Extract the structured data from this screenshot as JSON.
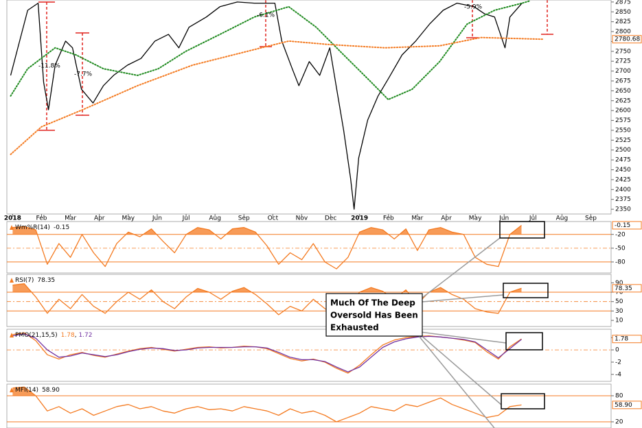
{
  "chart_data": [
    {
      "type": "line",
      "xlim": [
        -0.2,
        20.7
      ],
      "xticks": [
        {
          "value": 0,
          "label": "2018"
        },
        {
          "value": 1,
          "label": "Feb"
        },
        {
          "value": 2,
          "label": "Mar"
        },
        {
          "value": 3,
          "label": "Apr"
        },
        {
          "value": 4,
          "label": "May"
        },
        {
          "value": 5,
          "label": "Jun"
        },
        {
          "value": 6,
          "label": "Jul"
        },
        {
          "value": 7,
          "label": "Aug"
        },
        {
          "value": 8,
          "label": "Sep"
        },
        {
          "value": 9,
          "label": "Oct"
        },
        {
          "value": 10,
          "label": "Nov"
        },
        {
          "value": 11,
          "label": "Dec"
        },
        {
          "value": 12,
          "label": "2019"
        },
        {
          "value": 13,
          "label": "Feb"
        },
        {
          "value": 14,
          "label": "Mar"
        },
        {
          "value": 15,
          "label": "Apr"
        },
        {
          "value": 16,
          "label": "May"
        },
        {
          "value": 17,
          "label": "Jun"
        },
        {
          "value": 18,
          "label": "Jul"
        },
        {
          "value": 19,
          "label": "Aug"
        },
        {
          "value": 20,
          "label": "Sep"
        }
      ],
      "ylim": [
        2338,
        2880
      ],
      "yticks": [
        2350,
        2375,
        2400,
        2425,
        2450,
        2475,
        2500,
        2525,
        2550,
        2575,
        2600,
        2625,
        2650,
        2675,
        2700,
        2725,
        2750,
        2775,
        2800,
        2825,
        2850,
        2875
      ],
      "series": [
        {
          "color": "#000000",
          "line_style": "solid",
          "x": [
            -0.07,
            0.52,
            0.88,
            1.07,
            1.24,
            1.47,
            1.83,
            2.07,
            2.38,
            2.78,
            3.14,
            3.49,
            3.97,
            4.44,
            4.92,
            5.39,
            5.75,
            6.1,
            6.7,
            7.17,
            7.77,
            8.36,
            9.07,
            9.31,
            9.67,
            9.9,
            10.26,
            10.62,
            10.97,
            11.21,
            11.45,
            11.69,
            11.81,
            11.97,
            12.28,
            12.64,
            12.99,
            13.47,
            13.94,
            14.42,
            14.89,
            15.37,
            15.96,
            16.32,
            16.67,
            17.03,
            17.2,
            17.62
          ],
          "values": [
            2689,
            2854,
            2872,
            2672,
            2602,
            2715,
            2776,
            2759,
            2654,
            2619,
            2663,
            2689,
            2715,
            2732,
            2776,
            2793,
            2759,
            2811,
            2837,
            2863,
            2875,
            2872,
            2872,
            2776,
            2706,
            2663,
            2724,
            2689,
            2759,
            2654,
            2550,
            2428,
            2350,
            2480,
            2576,
            2637,
            2680,
            2741,
            2776,
            2819,
            2854,
            2872,
            2863,
            2845,
            2837,
            2759,
            2837,
            2872
          ]
        },
        {
          "color": "#1f8a1f",
          "line_style": "dotted",
          "x": [
            -0.07,
            0.52,
            1.47,
            2.19,
            3.14,
            4.32,
            5.04,
            5.99,
            7.17,
            8.36,
            9.55,
            10.5,
            11.45,
            12.4,
            12.99,
            13.82,
            14.77,
            15.72,
            16.67,
            17.62,
            17.86
          ],
          "values": [
            2637,
            2706,
            2759,
            2741,
            2706,
            2689,
            2706,
            2750,
            2793,
            2837,
            2863,
            2811,
            2741,
            2672,
            2628,
            2654,
            2724,
            2819,
            2854,
            2872,
            2877
          ]
        },
        {
          "color": "#f47a20",
          "line_style": "dotted",
          "x": [
            -0.07,
            1.0,
            2.42,
            4.32,
            6.22,
            8.6,
            9.55,
            10.97,
            12.87,
            14.77,
            16.2,
            18.34
          ],
          "values": [
            2489,
            2559,
            2602,
            2663,
            2715,
            2759,
            2776,
            2767,
            2759,
            2764,
            2785,
            2780.68
          ]
        }
      ],
      "tag_series": 2,
      "annotations": [
        "-11.8%",
        "-7.7%",
        "-6.1%",
        "-5.9%"
      ]
    },
    {
      "type": "line",
      "title": "Wm%R(14)",
      "xlim": [
        -0.2,
        20.7
      ],
      "ylim": [
        -104,
        8
      ],
      "yticks": [
        -20,
        -50,
        -80
      ],
      "levels": [
        -20,
        -80
      ],
      "midline": -50,
      "fill_above": -20,
      "tag_series": 0,
      "x": [
        0,
        0.4,
        0.8,
        1.2,
        1.6,
        2,
        2.4,
        2.8,
        3.2,
        3.6,
        4,
        4.4,
        4.8,
        5.2,
        5.6,
        6,
        6.4,
        6.8,
        7.2,
        7.6,
        8,
        8.4,
        8.8,
        9.2,
        9.6,
        10,
        10.4,
        10.8,
        11.2,
        11.6,
        12,
        12.4,
        12.8,
        13.2,
        13.6,
        14,
        14.4,
        14.8,
        15.2,
        15.6,
        16,
        16.4,
        16.8,
        17.2,
        17.6
      ],
      "series": [
        {
          "color": "#f47a20",
          "values": [
            -5,
            -3,
            -10,
            -85,
            -40,
            -70,
            -20,
            -60,
            -90,
            -40,
            -15,
            -25,
            -8,
            -35,
            -60,
            -20,
            -5,
            -10,
            -30,
            -8,
            -5,
            -15,
            -45,
            -85,
            -60,
            -75,
            -40,
            -80,
            -95,
            -70,
            -15,
            -5,
            -10,
            -30,
            -8,
            -55,
            -10,
            -5,
            -15,
            -20,
            -70,
            -85,
            -90,
            -20,
            -0.15
          ]
        }
      ]
    },
    {
      "type": "line",
      "title": "RSI(7)",
      "xlim": [
        -0.2,
        20.7
      ],
      "ylim": [
        -3,
        108
      ],
      "yticks": [
        90,
        70,
        50,
        30,
        10
      ],
      "levels": [
        70,
        30
      ],
      "midline": 50,
      "fill_above": 70,
      "tag_series": 0,
      "x": [
        0,
        0.4,
        0.8,
        1.2,
        1.6,
        2,
        2.4,
        2.8,
        3.2,
        3.6,
        4,
        4.4,
        4.8,
        5.2,
        5.6,
        6,
        6.4,
        6.8,
        7.2,
        7.6,
        8,
        8.4,
        8.8,
        9.2,
        9.6,
        10,
        10.4,
        10.8,
        11.2,
        11.6,
        12,
        12.4,
        12.8,
        13.2,
        13.6,
        14,
        14.4,
        14.8,
        15.2,
        15.6,
        16,
        16.4,
        16.8,
        17.2,
        17.6
      ],
      "series": [
        {
          "color": "#f47a20",
          "values": [
            85,
            88,
            60,
            25,
            55,
            35,
            65,
            40,
            25,
            50,
            70,
            55,
            75,
            50,
            35,
            60,
            78,
            70,
            55,
            72,
            80,
            65,
            45,
            22,
            40,
            30,
            55,
            35,
            20,
            40,
            70,
            80,
            72,
            55,
            75,
            45,
            70,
            80,
            65,
            55,
            35,
            28,
            25,
            70,
            78.35
          ]
        }
      ]
    },
    {
      "type": "line",
      "title": "PMO(21,15,5)",
      "value_separator": ", ",
      "xlim": [
        -0.2,
        20.7
      ],
      "ylim": [
        -5.14,
        3.37
      ],
      "yticks": [
        2,
        0,
        -2,
        -4
      ],
      "midline": 0,
      "tag_series": 0,
      "x": [
        0,
        0.4,
        0.8,
        1.2,
        1.6,
        2,
        2.4,
        2.8,
        3.2,
        3.6,
        4,
        4.4,
        4.8,
        5.2,
        5.6,
        6,
        6.4,
        6.8,
        7.2,
        7.6,
        8,
        8.4,
        8.8,
        9.2,
        9.6,
        10,
        10.4,
        10.8,
        11.2,
        11.6,
        12,
        12.4,
        12.8,
        13.2,
        13.6,
        14,
        14.4,
        14.8,
        15.2,
        15.6,
        16,
        16.4,
        16.8,
        17.2,
        17.6
      ],
      "series": [
        {
          "color": "#f47a20",
          "values": [
            2.5,
            2.8,
            1.5,
            -0.8,
            -1.5,
            -0.8,
            -0.4,
            -0.9,
            -1.2,
            -0.7,
            -0.2,
            0.2,
            0.4,
            0.1,
            -0.2,
            0.1,
            0.4,
            0.5,
            0.3,
            0.4,
            0.6,
            0.5,
            0.2,
            -0.6,
            -1.4,
            -1.8,
            -1.5,
            -2.0,
            -3.0,
            -3.8,
            -2.5,
            -0.8,
            0.8,
            1.6,
            2.0,
            2.2,
            2.3,
            2.1,
            1.9,
            1.6,
            1.2,
            -0.3,
            -1.5,
            0.5,
            1.78
          ]
        },
        {
          "color": "#7030a0",
          "values": [
            2.3,
            2.6,
            1.9,
            0.0,
            -1.2,
            -1.0,
            -0.5,
            -0.8,
            -1.1,
            -0.8,
            -0.3,
            0.1,
            0.3,
            0.2,
            -0.1,
            0.0,
            0.3,
            0.4,
            0.4,
            0.4,
            0.5,
            0.5,
            0.3,
            -0.4,
            -1.2,
            -1.6,
            -1.6,
            -1.9,
            -2.8,
            -3.6,
            -2.8,
            -1.2,
            0.4,
            1.3,
            1.8,
            2.1,
            2.2,
            2.1,
            1.9,
            1.7,
            1.3,
            0.0,
            -1.3,
            0.2,
            1.72
          ]
        }
      ]
    },
    {
      "type": "line",
      "title": "MFI(14)",
      "last_label": "58.90",
      "xlim": [
        -0.2,
        20.7
      ],
      "ylim": [
        5.8,
        106.8
      ],
      "yticks": [
        80,
        20
      ],
      "levels": [
        80,
        20
      ],
      "fill_above": 80,
      "tag_series": 0,
      "x": [
        0,
        0.4,
        0.8,
        1.2,
        1.6,
        2,
        2.4,
        2.8,
        3.2,
        3.6,
        4,
        4.4,
        4.8,
        5.2,
        5.6,
        6,
        6.4,
        6.8,
        7.2,
        7.6,
        8,
        8.4,
        8.8,
        9.2,
        9.6,
        10,
        10.4,
        10.8,
        11.2,
        11.6,
        12,
        12.4,
        12.8,
        13.2,
        13.6,
        14,
        14.4,
        14.8,
        15.2,
        15.6,
        16,
        16.4,
        16.8,
        17.2,
        17.6
      ],
      "series": [
        {
          "color": "#f47a20",
          "values": [
            98,
            100,
            80,
            45,
            55,
            40,
            50,
            35,
            45,
            55,
            60,
            50,
            55,
            45,
            40,
            50,
            55,
            48,
            50,
            45,
            55,
            50,
            45,
            35,
            50,
            40,
            45,
            35,
            20,
            30,
            40,
            55,
            50,
            45,
            60,
            55,
            65,
            75,
            60,
            50,
            40,
            30,
            35,
            55,
            58.9
          ]
        }
      ]
    }
  ],
  "callout": {
    "lines": [
      "Much Of The Deep",
      "Oversold Has Been",
      "Exhausted"
    ]
  }
}
